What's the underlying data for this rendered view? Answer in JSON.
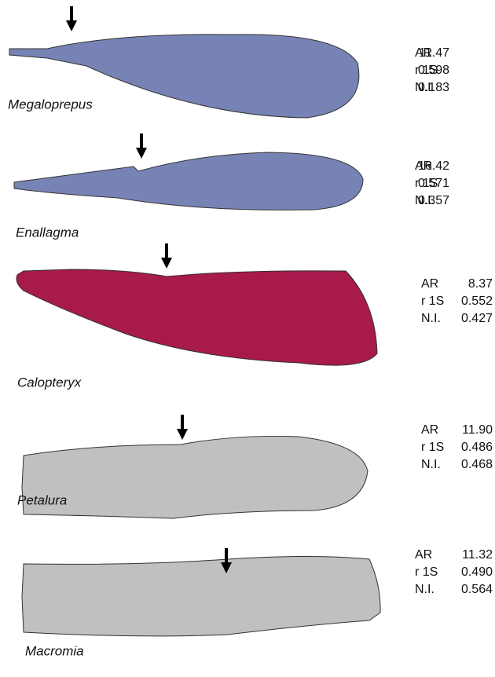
{
  "wings": [
    {
      "name": "Megaloprepus",
      "color": "#7883b5",
      "stats": [
        {
          "label": "AR",
          "value": "11.47"
        },
        {
          "label": "r 1S",
          "value": "0.598"
        },
        {
          "label": "N.I.",
          "value": "0.183"
        }
      ]
    },
    {
      "name": "Enallagma",
      "color": "#7883b5",
      "stats": [
        {
          "label": "AR",
          "value": "16.42"
        },
        {
          "label": "r 1S",
          "value": "0.571"
        },
        {
          "label": "N.I.",
          "value": "0.357"
        }
      ]
    },
    {
      "name": "Calopteryx",
      "color": "#a8194c",
      "stats": [
        {
          "label": "AR",
          "value": "8.37"
        },
        {
          "label": "r 1S",
          "value": "0.552"
        },
        {
          "label": "N.I.",
          "value": "0.427"
        }
      ]
    },
    {
      "name": "Petalura",
      "color": "#c0c0c0",
      "stats": [
        {
          "label": "AR",
          "value": "11.90"
        },
        {
          "label": "r 1S",
          "value": "0.486"
        },
        {
          "label": "N.I.",
          "value": "0.468"
        }
      ]
    },
    {
      "name": "Macromia",
      "color": "#c0c0c0",
      "stats": [
        {
          "label": "AR",
          "value": "11.32"
        },
        {
          "label": "r 1S",
          "value": "0.490"
        },
        {
          "label": "N.I.",
          "value": "0.564"
        }
      ]
    }
  ]
}
